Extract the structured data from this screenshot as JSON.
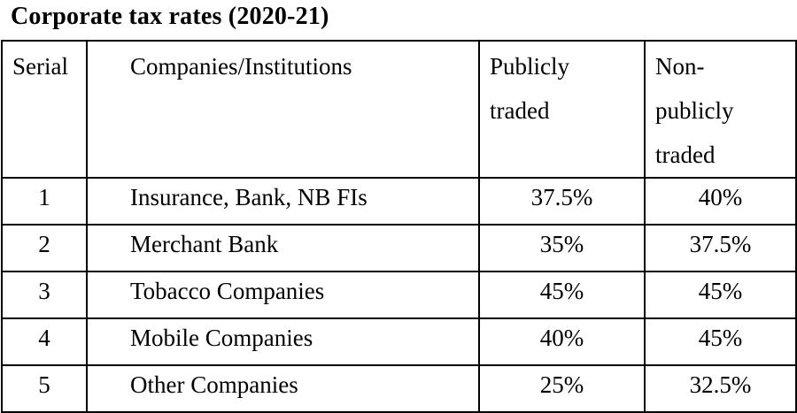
{
  "page": {
    "title": "Corporate tax rates (2020-21)"
  },
  "colors": {
    "background": "#ffffff",
    "text": "#000000",
    "table_border": "#000000"
  },
  "table": {
    "columns": [
      {
        "key": "serial",
        "label": "Serial"
      },
      {
        "key": "company",
        "label": "Companies/Institutions"
      },
      {
        "key": "publicly",
        "label": "Publicly\ntraded"
      },
      {
        "key": "non_publicly",
        "label": "Non-\npublicly\ntraded"
      }
    ],
    "rows": [
      {
        "serial": "1",
        "company": "Insurance, Bank, NB FIs",
        "publicly": "37.5%",
        "non_publicly": "40%"
      },
      {
        "serial": "2",
        "company": "Merchant Bank",
        "publicly": "35%",
        "non_publicly": "37.5%"
      },
      {
        "serial": "3",
        "company": "Tobacco Companies",
        "publicly": "45%",
        "non_publicly": "45%"
      },
      {
        "serial": "4",
        "company": "Mobile Companies",
        "publicly": "40%",
        "non_publicly": "45%"
      },
      {
        "serial": "5",
        "company": "Other Companies",
        "publicly": "25%",
        "non_publicly": "32.5%"
      }
    ]
  }
}
